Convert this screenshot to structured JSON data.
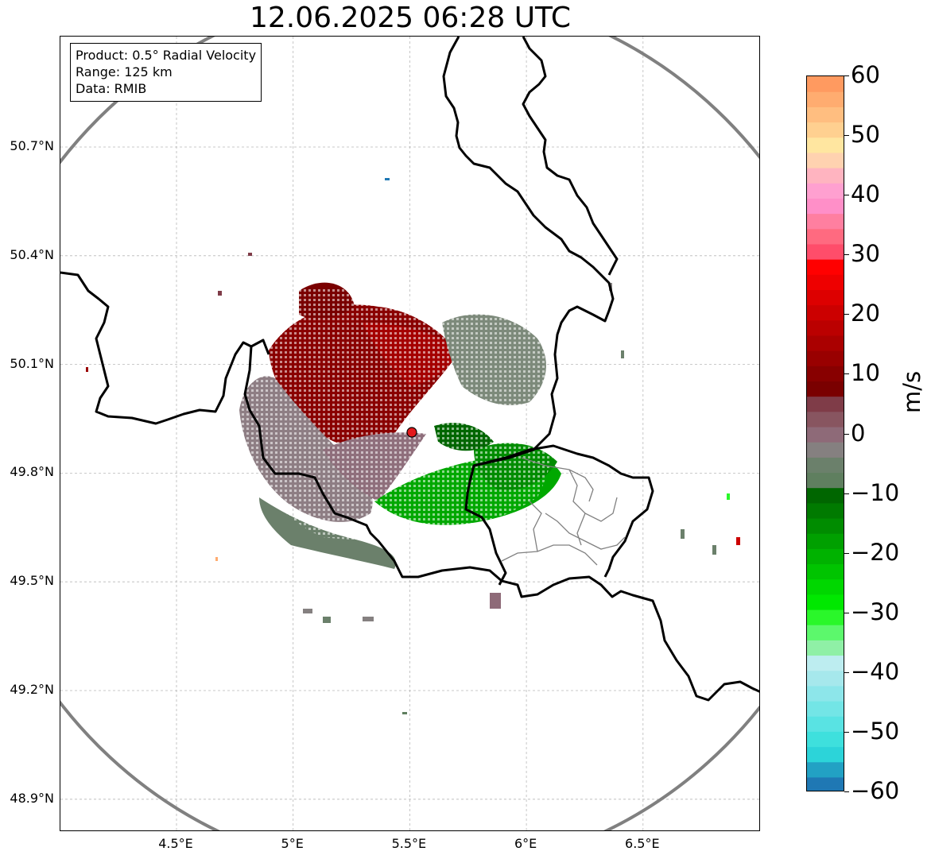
{
  "title": "12.06.2025 06:28 UTC",
  "info_box": {
    "product": "Product: 0.5° Radial Velocity",
    "range": "Range: 125 km",
    "source": "Data: RMIB"
  },
  "axes": {
    "lon_labels": [
      "4.5°E",
      "5°E",
      "5.5°E",
      "6°E",
      "6.5°E"
    ],
    "lat_labels": [
      "50.7°N",
      "50.4°N",
      "50.1°N",
      "49.8°N",
      "49.5°N",
      "49.2°N",
      "48.9°N"
    ],
    "lon_values": [
      4.5,
      5.0,
      5.5,
      6.0,
      6.5
    ],
    "lat_values": [
      50.7,
      50.4,
      50.1,
      49.8,
      49.5,
      49.2,
      48.9
    ],
    "lon_range": [
      4.0,
      7.0
    ],
    "lat_range": [
      48.8,
      51.0
    ],
    "grid": true
  },
  "radar": {
    "lon": 5.51,
    "lat": 49.92,
    "range_km": 125,
    "marker_color": "#e31a1c",
    "range_ring_color": "#808080"
  },
  "colorbar": {
    "unit": "m/s",
    "min": -60,
    "max": 60,
    "tick_labels": [
      "60",
      "50",
      "40",
      "30",
      "20",
      "10",
      "0",
      "−10",
      "−20",
      "−30",
      "−40",
      "−50",
      "−60"
    ],
    "tick_values": [
      60,
      50,
      40,
      30,
      20,
      10,
      0,
      -10,
      -20,
      -30,
      -40,
      -50,
      -60
    ],
    "colors": [
      "#1f78b4",
      "#22a1c4",
      "#2cd4d9",
      "#3ee0dd",
      "#59e3e3",
      "#73e5e6",
      "#8de6ea",
      "#a6e8ec",
      "#bdedf0",
      "#8ff0a6",
      "#5cf86c",
      "#2af72a",
      "#00e800",
      "#00d700",
      "#00c400",
      "#00b200",
      "#00a000",
      "#008c00",
      "#007a00",
      "#006600",
      "#5f7f5f",
      "#6b806b",
      "#858080",
      "#8e6a78",
      "#885560",
      "#7f3c48",
      "#7a0000",
      "#880000",
      "#990000",
      "#aa0000",
      "#bb0000",
      "#cc0000",
      "#dd0000",
      "#ee0000",
      "#ff0000",
      "#ff4d6a",
      "#ff6a80",
      "#ff7fa0",
      "#ff8fc8",
      "#ffa0d0",
      "#ffb4c0",
      "#ffd2b0",
      "#ffe6a0",
      "#ffd090",
      "#ffbe80",
      "#ffac70",
      "#ff9a60"
    ]
  },
  "map_layers": {
    "borders": "country",
    "admin_lines": "province",
    "border_color": "#000000",
    "admin_color": "#808080"
  }
}
